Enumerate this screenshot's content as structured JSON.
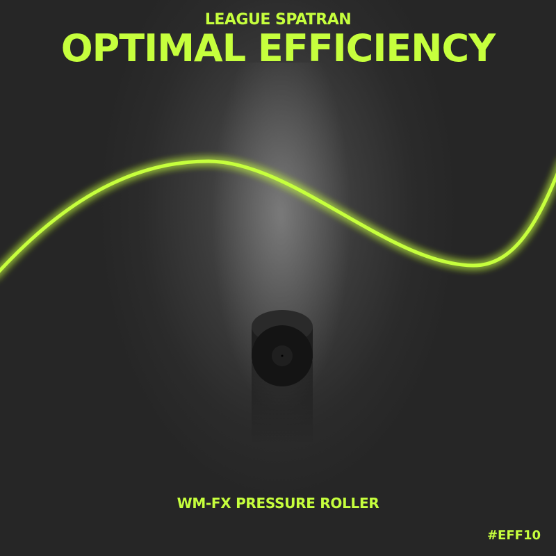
{
  "header": {
    "subtitle": "LEAGUE SPATRAN",
    "title": "OPTIMAL EFFICIENCY"
  },
  "product_name": "WM-FX PRESSURE ROLLER",
  "hashtag": "#EFF10",
  "colors": {
    "accent": "#c6ff3d",
    "background": "#2b2b2b"
  }
}
